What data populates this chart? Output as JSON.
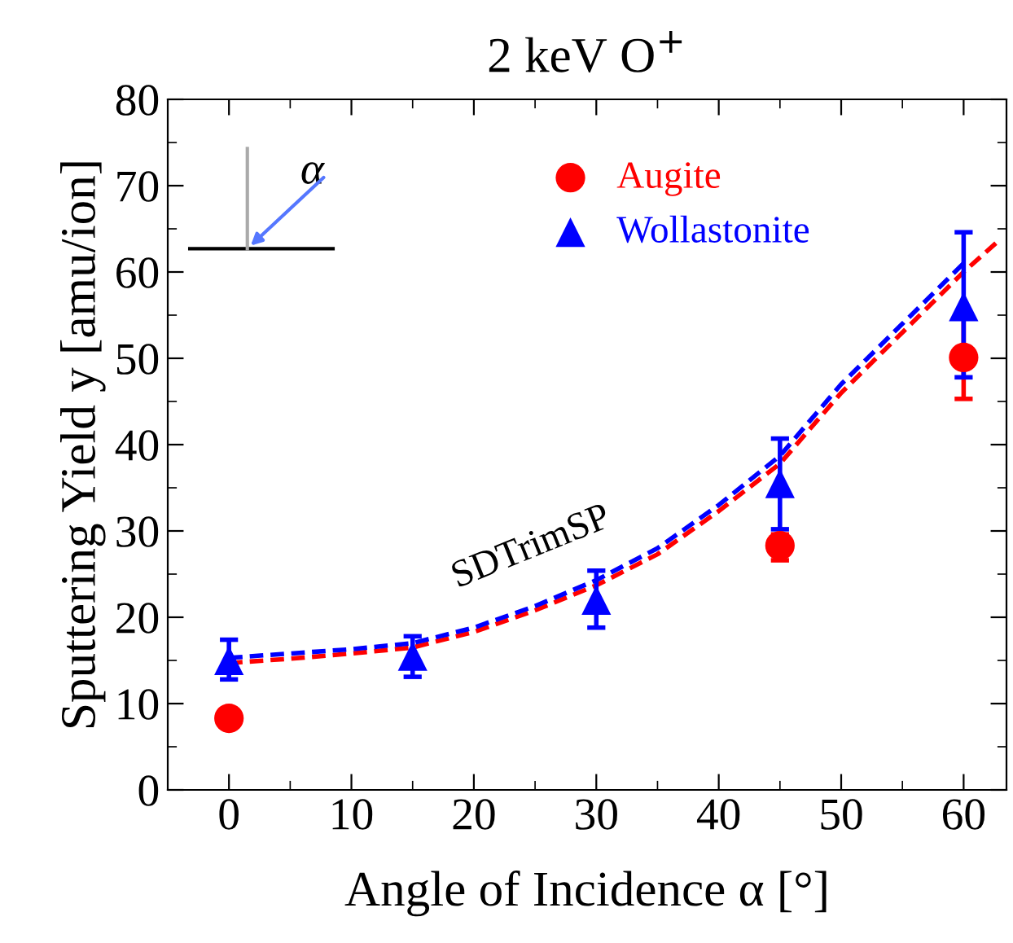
{
  "chart_data": {
    "type": "scatter",
    "title": "2 keV O$^{+}$",
    "xlabel": "Angle of Incidence α [°]",
    "ylabel": "Sputtering Yield y [amu/ion]",
    "xlim": [
      -5,
      63.5
    ],
    "ylim": [
      0,
      80
    ],
    "xticks": [
      0,
      10,
      20,
      30,
      40,
      50,
      60
    ],
    "yticks": [
      0,
      10,
      20,
      30,
      40,
      50,
      60,
      70,
      80
    ],
    "grid": false,
    "legend": "top",
    "line_style": "dashed",
    "series": [
      {
        "type": "line",
        "color": "#ff0000",
        "x": [
          0,
          5,
          10,
          15,
          20,
          25,
          30,
          35,
          40,
          45,
          50,
          55,
          60,
          63
        ],
        "values": [
          14.7,
          15.2,
          15.8,
          16.5,
          18.3,
          20.8,
          23.7,
          27.3,
          32.3,
          37.8,
          46,
          53,
          60,
          63.8
        ]
      },
      {
        "type": "line",
        "color": "#0000ff",
        "x": [
          0,
          5,
          10,
          15,
          20,
          25,
          30,
          35,
          40,
          45,
          50,
          55,
          60
        ],
        "values": [
          15.3,
          15.8,
          16.3,
          17,
          18.8,
          21.3,
          24.3,
          28,
          33,
          38.7,
          47,
          54,
          61
        ]
      },
      {
        "name": "Augite",
        "marker": "circle",
        "color": "#ff0000",
        "x": [
          0,
          45,
          60
        ],
        "values": [
          8.3,
          28.3,
          50.1
        ],
        "errors": [
          null,
          [
            26.6,
            29.6
          ],
          [
            45.3,
            54.9
          ]
        ]
      },
      {
        "name": "Wollastonite",
        "marker": "triangle",
        "color": "#0000ff",
        "x": [
          0,
          15,
          30,
          45,
          60
        ],
        "values": [
          15,
          15.5,
          22,
          35.5,
          56
        ],
        "errors": [
          [
            12.8,
            17.4
          ],
          [
            13.1,
            17.8
          ],
          [
            18.8,
            25.4
          ],
          [
            30.2,
            40.7
          ],
          [
            47.8,
            64.6
          ]
        ]
      }
    ],
    "annotations": [
      "SDTrimSP",
      "α"
    ]
  }
}
